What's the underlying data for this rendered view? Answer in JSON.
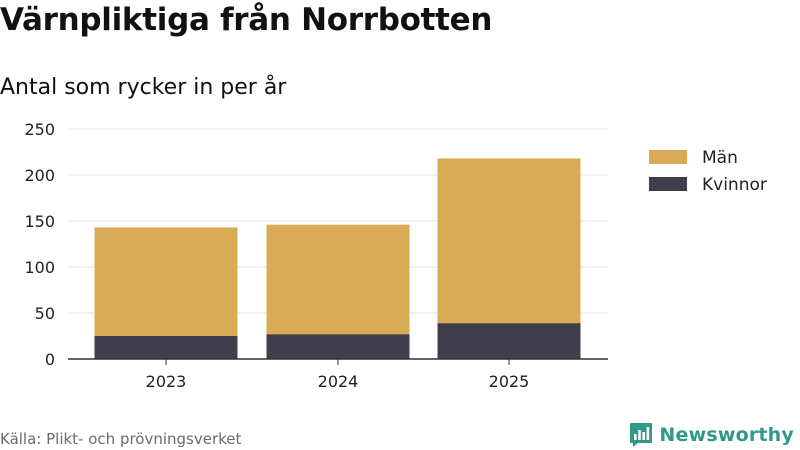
{
  "title": "Värnpliktiga från Norrbotten",
  "subtitle": "Antal som rycker in per år",
  "source": "Källa: Plikt- och prövningsverket",
  "brand": "Newsworthy",
  "colors": {
    "man": "#d9ab57",
    "kvinnor": "#403d4c",
    "grid": "#e3e3e3",
    "axis": "#333333",
    "brand": "#2e9a88"
  },
  "chart_data": {
    "type": "bar",
    "stacked": true,
    "categories": [
      "2023",
      "2024",
      "2025"
    ],
    "series": [
      {
        "name": "Kvinnor",
        "values": [
          25,
          27,
          39
        ],
        "color": "#403d4c"
      },
      {
        "name": "Män",
        "values": [
          118,
          119,
          179
        ],
        "color": "#d9ab57"
      }
    ],
    "legend": [
      {
        "label": "Män",
        "color": "#d9ab57"
      },
      {
        "label": "Kvinnor",
        "color": "#403d4c"
      }
    ],
    "legend_position": "right",
    "yticks": [
      0,
      50,
      100,
      150,
      200,
      250
    ],
    "ylim": [
      0,
      250
    ],
    "grid": true,
    "xlabel": "",
    "ylabel": ""
  }
}
